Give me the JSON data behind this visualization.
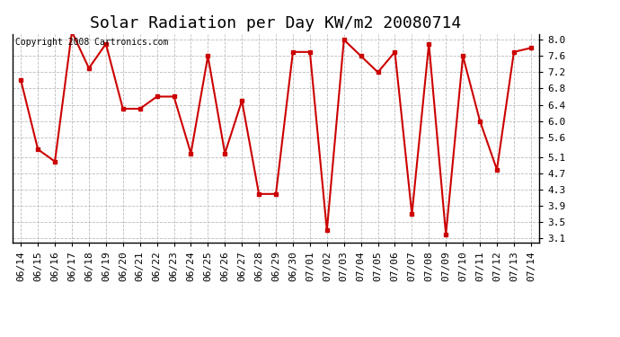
{
  "title": "Solar Radiation per Day KW/m2 20080714",
  "copyright": "Copyright 2008 Cartronics.com",
  "dates": [
    "06/14",
    "06/15",
    "06/16",
    "06/17",
    "06/18",
    "06/19",
    "06/20",
    "06/21",
    "06/22",
    "06/23",
    "06/24",
    "06/25",
    "06/26",
    "06/27",
    "06/28",
    "06/29",
    "06/30",
    "07/01",
    "07/02",
    "07/03",
    "07/04",
    "07/05",
    "07/06",
    "07/07",
    "07/08",
    "07/09",
    "07/10",
    "07/11",
    "07/12",
    "07/13",
    "07/14"
  ],
  "values": [
    7.0,
    5.3,
    5.0,
    8.2,
    7.3,
    7.9,
    6.3,
    6.3,
    6.6,
    6.6,
    5.2,
    7.6,
    5.2,
    6.5,
    4.2,
    4.2,
    7.7,
    7.7,
    3.3,
    8.0,
    7.6,
    7.2,
    7.7,
    3.7,
    7.9,
    3.2,
    7.6,
    6.0,
    4.8,
    7.7,
    7.8
  ],
  "line_color": "#cc0000",
  "marker": "s",
  "marker_size": 3,
  "bg_color": "#ffffff",
  "plot_bg_color": "#ffffff",
  "grid_color": "#bbbbbb",
  "ylim": [
    3.0,
    8.15
  ],
  "yticks": [
    3.1,
    3.5,
    3.9,
    4.3,
    4.7,
    5.1,
    5.6,
    6.0,
    6.4,
    6.8,
    7.2,
    7.6,
    8.0
  ],
  "ytick_labels": [
    "3.1",
    "3.5",
    "3.9",
    "4.3",
    "4.7",
    "5.1",
    "5.6",
    "6.0",
    "6.4",
    "6.8",
    "7.2",
    "7.6",
    "8.0"
  ],
  "title_fontsize": 13,
  "tick_fontsize": 8,
  "copyright_fontsize": 7
}
